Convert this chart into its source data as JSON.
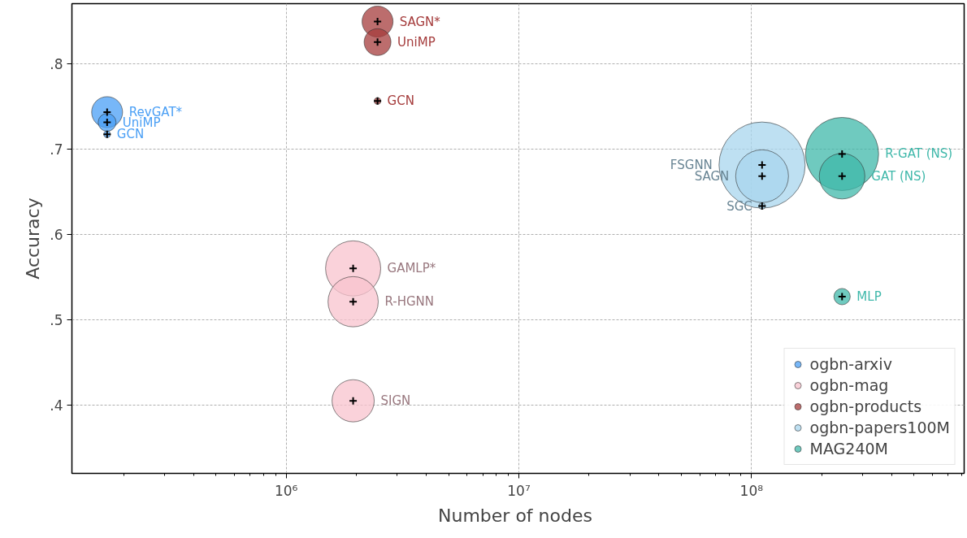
{
  "chart_data": {
    "type": "bubble",
    "xlabel": "Number of  nodes",
    "ylabel": "Accuracy",
    "log": "x",
    "xlim": [
      120000,
      820000000
    ],
    "ylim": [
      0.32,
      0.87
    ],
    "xticks": [
      {
        "value": 1000000,
        "label": "10⁶"
      },
      {
        "value": 10000000,
        "label": "10⁷"
      },
      {
        "value": 100000000,
        "label": "10⁸"
      }
    ],
    "yticks": [
      {
        "value": 0.4,
        "label": ".4"
      },
      {
        "value": 0.5,
        "label": ".5"
      },
      {
        "value": 0.6,
        "label": ".6"
      },
      {
        "value": 0.7,
        "label": ".7"
      },
      {
        "value": 0.8,
        "label": ".8"
      }
    ],
    "grid": true,
    "legend": "bottom right",
    "series": [
      {
        "name": "ogbn-arxiv",
        "color": "#4a9ff5",
        "x": [
          170000,
          170000,
          170000
        ],
        "values": [
          0.743,
          0.731,
          0.717
        ],
        "sizes": [
          0.129,
          0.043,
          0.0057
        ],
        "value_labels": [
          "RevGAT*",
          "UniMP",
          "GCN"
        ]
      },
      {
        "name": "ogbn-mag",
        "color": "#f8c3cd",
        "x": [
          1940000,
          1940000,
          1940000
        ],
        "values": [
          0.56,
          0.521,
          0.405
        ],
        "sizes": [
          0.41,
          0.34,
          0.24
        ],
        "value_labels": [
          "GAMLP*",
          "R-HGNN",
          "SIGN"
        ]
      },
      {
        "name": "ogbn-products",
        "color": "#a53c3c",
        "x": [
          2470000,
          2470000,
          2470000
        ],
        "values": [
          0.849,
          0.825,
          0.756
        ],
        "sizes": [
          0.129,
          0.097,
          0.0057
        ],
        "value_labels": [
          "SAGN*",
          "UniMP",
          "GCN"
        ]
      },
      {
        "name": "ogbn-papers100M",
        "color": "#a8d6ee",
        "x": [
          111000000,
          111000000,
          111000000
        ],
        "values": [
          0.681,
          0.668,
          0.633
        ],
        "sizes": [
          1,
          0.376,
          0.0057
        ],
        "value_labels": [
          "FSGNN",
          "SAGN",
          "SGC"
        ]
      },
      {
        "name": "MAG240M",
        "color": "#3fb8aa",
        "x": [
          245000000,
          245000000,
          245000000
        ],
        "values": [
          0.694,
          0.668,
          0.527
        ],
        "sizes": [
          0.72,
          0.28,
          0.036
        ],
        "value_labels": [
          "R-GAT (NS)",
          "GAT (NS)",
          "MLP"
        ]
      }
    ]
  }
}
